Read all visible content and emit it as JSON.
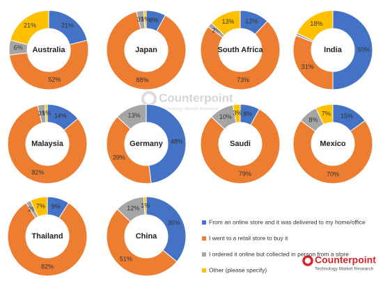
{
  "chart_data": [
    {
      "type": "donut",
      "title": "Australia",
      "values": [
        21,
        52,
        6,
        21
      ],
      "value_labels": [
        "21%",
        "52%",
        "6%",
        "21%"
      ]
    },
    {
      "type": "donut",
      "title": "Japan",
      "values": [
        8,
        88,
        3,
        1
      ],
      "value_labels": [
        "8%",
        "88%",
        "3%",
        "1%"
      ]
    },
    {
      "type": "donut",
      "title": "South Africa",
      "values": [
        12,
        73,
        2,
        13
      ],
      "value_labels": [
        "12%",
        "73%",
        "2%",
        "13%"
      ]
    },
    {
      "type": "donut",
      "title": "India",
      "values": [
        50,
        31,
        1,
        18
      ],
      "value_labels": [
        "50%",
        "31%",
        null,
        "18%"
      ]
    },
    {
      "type": "donut",
      "title": "Malaysia",
      "values": [
        14,
        82,
        3,
        1
      ],
      "value_labels": [
        "14%",
        "82%",
        "3%",
        "1%"
      ]
    },
    {
      "type": "donut",
      "title": "Germany",
      "values": [
        48,
        39,
        13,
        0
      ],
      "value_labels": [
        "48%",
        "39%",
        "13%",
        null
      ]
    },
    {
      "type": "donut",
      "title": "Saudi",
      "values": [
        8,
        79,
        10,
        3
      ],
      "value_labels": [
        "8%",
        "79%",
        "10%",
        "3%"
      ]
    },
    {
      "type": "donut",
      "title": "Mexico",
      "values": [
        15,
        70,
        8,
        7
      ],
      "value_labels": [
        "15%",
        "70%",
        "8%",
        "7%"
      ]
    },
    {
      "type": "donut",
      "title": "Thailand",
      "values": [
        9,
        82,
        2,
        7
      ],
      "value_labels": [
        "9%",
        "82%",
        "2%",
        "7%"
      ]
    },
    {
      "type": "donut",
      "title": "China",
      "values": [
        36,
        51,
        12,
        1
      ],
      "value_labels": [
        "36%",
        "51%",
        "12%",
        "1%"
      ]
    }
  ],
  "legend": {
    "categories": [
      "From an online store and it was delivered to my home/office",
      "I went to a retail store to buy it",
      "I ordered it online but collected in person from a store",
      "Other (please specify)"
    ],
    "colors": [
      "#4472c4",
      "#ed7d31",
      "#a5a5a5",
      "#ffc000"
    ]
  },
  "logo": {
    "name": "Counterpoint",
    "tagline": "Technology Market Research"
  }
}
